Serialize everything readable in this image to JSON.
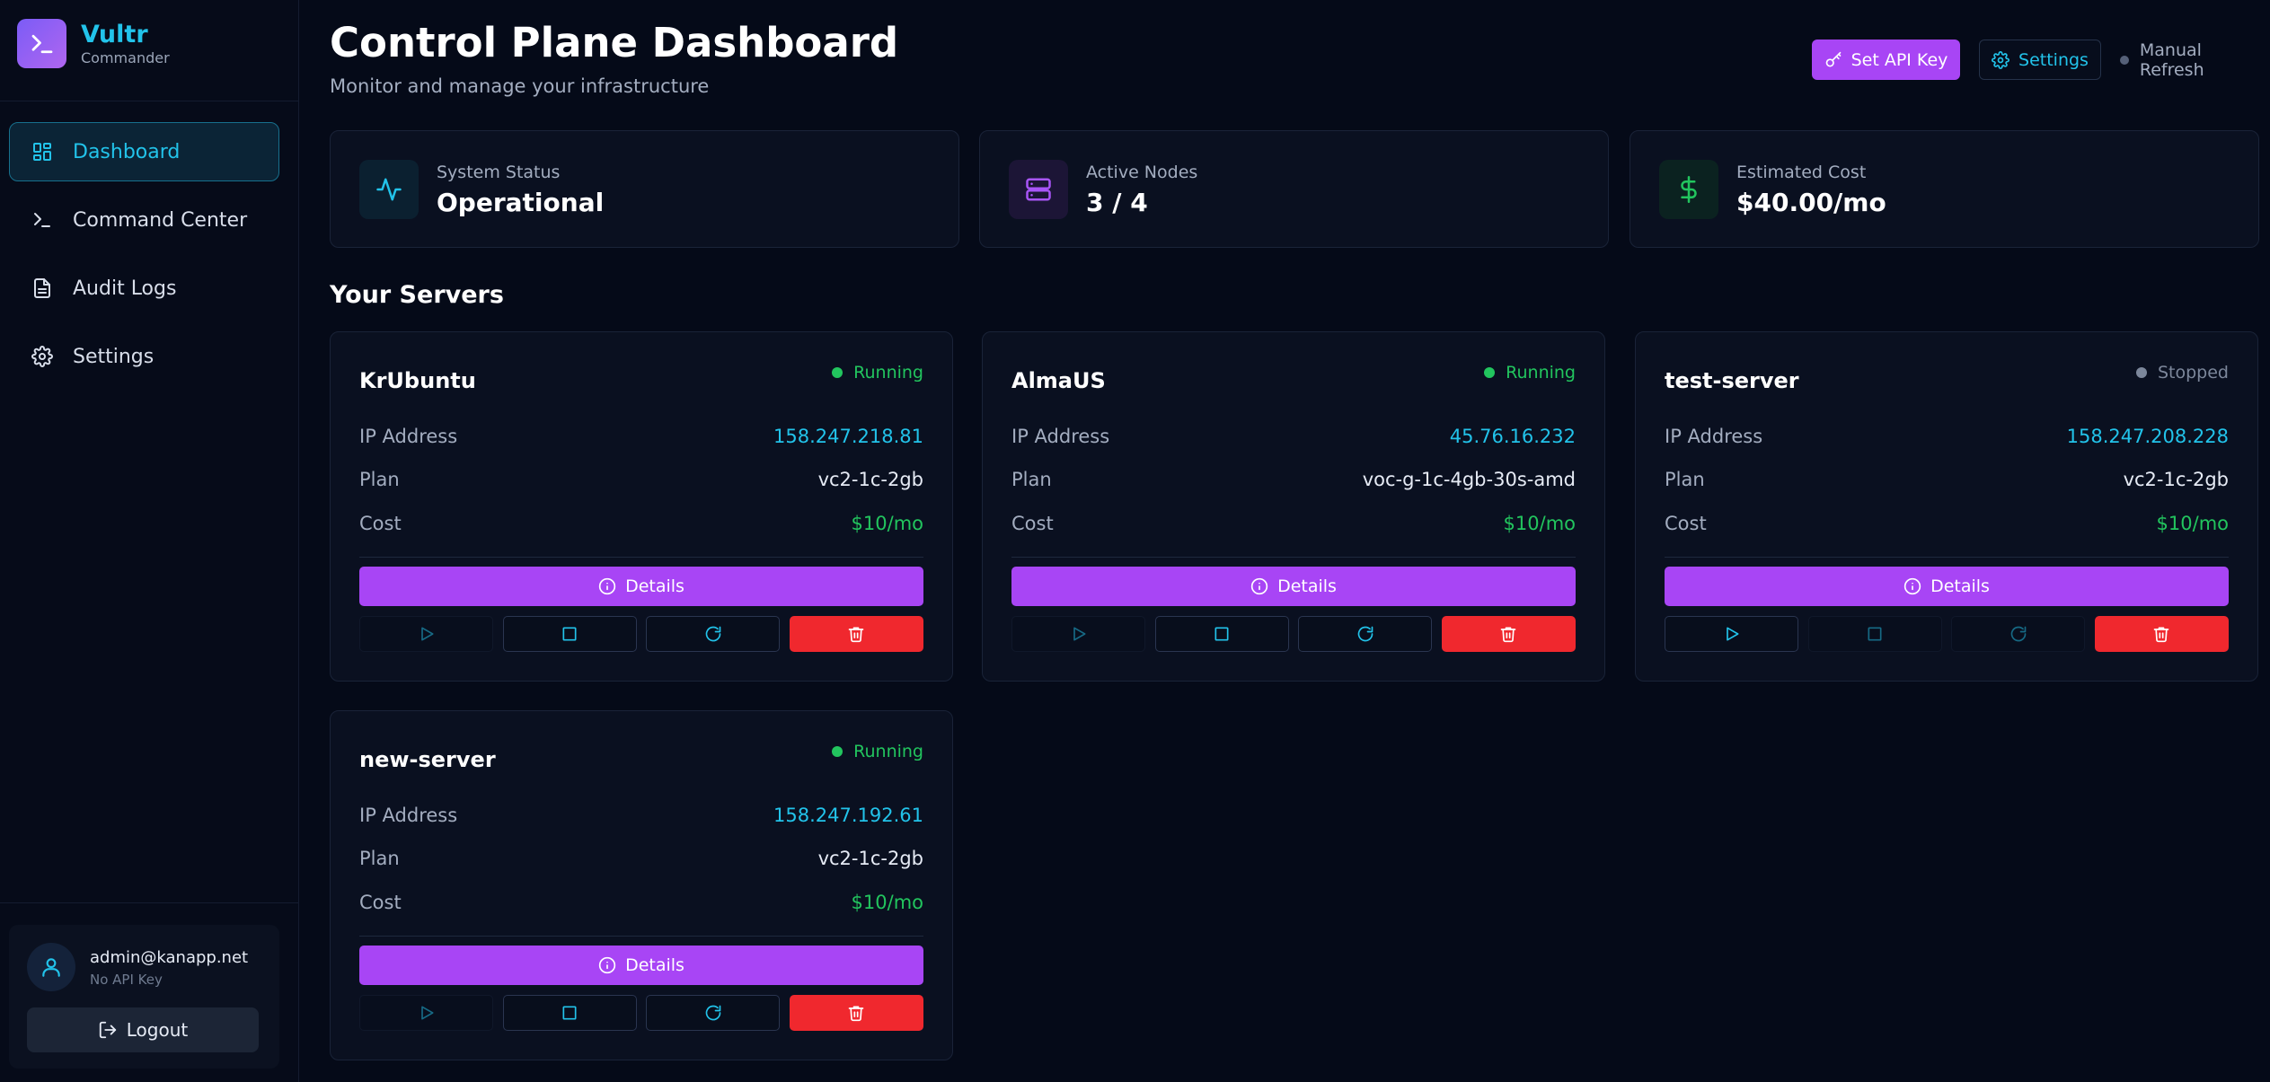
{
  "brand": {
    "name": "Vultr",
    "subtitle": "Commander"
  },
  "nav": [
    {
      "label": "Dashboard",
      "icon": "dashboard-icon",
      "active": true
    },
    {
      "label": "Command Center",
      "icon": "terminal-icon",
      "active": false
    },
    {
      "label": "Audit Logs",
      "icon": "file-text-icon",
      "active": false
    },
    {
      "label": "Settings",
      "icon": "gear-icon",
      "active": false
    }
  ],
  "user": {
    "email": "admin@kanapp.net",
    "api_status": "No API Key",
    "logout_label": "Logout"
  },
  "header": {
    "title": "Control Plane Dashboard",
    "subtitle": "Monitor and manage your infrastructure",
    "set_api_key_label": "Set API Key",
    "settings_label": "Settings",
    "refresh_label": "Manual Refresh"
  },
  "stats": [
    {
      "label": "System Status",
      "value": "Operational",
      "icon": "activity-icon",
      "color": "#22c3ea"
    },
    {
      "label": "Active Nodes",
      "value": "3 / 4",
      "icon": "server-icon",
      "color": "#a855f7"
    },
    {
      "label": "Estimated Cost",
      "value": "$40.00/mo",
      "icon": "dollar-icon",
      "color": "#22c55e"
    }
  ],
  "servers_section_title": "Your Servers",
  "server_labels": {
    "ip": "IP Address",
    "plan": "Plan",
    "cost": "Cost",
    "details": "Details"
  },
  "servers": [
    {
      "name": "KrUbuntu",
      "status": "Running",
      "ip": "158.247.218.81",
      "plan": "vc2-1c-2gb",
      "cost": "$10/mo"
    },
    {
      "name": "AlmaUS",
      "status": "Running",
      "ip": "45.76.16.232",
      "plan": "voc-g-1c-4gb-30s-amd",
      "cost": "$10/mo"
    },
    {
      "name": "test-server",
      "status": "Stopped",
      "ip": "158.247.208.228",
      "plan": "vc2-1c-2gb",
      "cost": "$10/mo"
    },
    {
      "name": "new-server",
      "status": "Running",
      "ip": "158.247.192.61",
      "plan": "vc2-1c-2gb",
      "cost": "$10/mo"
    }
  ],
  "colors": {
    "accent": "#22c3ea",
    "purple": "#a845f5",
    "success": "#22c55e",
    "danger": "#f0282e",
    "background": "#050a18"
  }
}
